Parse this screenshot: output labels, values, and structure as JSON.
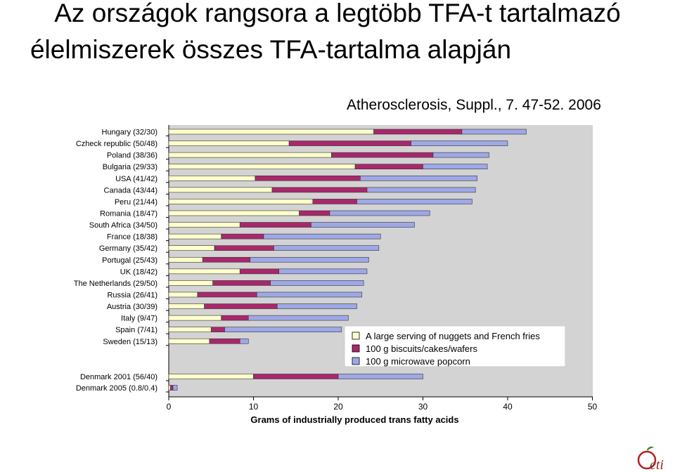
{
  "slide": {
    "title_line1": "Az országok rangsora a legtöbb TFA-t tartalmazó",
    "title_line2": "élelmiszerek összes TFA-tartalma alapján",
    "source": "Atherosclerosis, Suppl., 7. 47-52. 2006",
    "logo_text": "eti"
  },
  "colors": {
    "plot_bg": "#d3d3d3",
    "bar_border": "#333333"
  },
  "chart_data": {
    "type": "bar",
    "orientation": "horizontal",
    "stacked": true,
    "title": "",
    "xlabel": "Grams of industrially produced trans fatty acids",
    "ylabel": "",
    "xlim": [
      0,
      50
    ],
    "xticks": [
      0,
      10,
      20,
      30,
      40,
      50
    ],
    "legend_position": "bottom-right",
    "categories": [
      "Hungary (32/30)",
      "Czheck republic (50/48)",
      "Poland (38/36)",
      "Bulgaria (29/33)",
      "USA (41/42)",
      "Canada (43/44)",
      "Peru (21/44)",
      "Romania (18/47)",
      "South Africa (34/50)",
      "France (18/38)",
      "Germany (35/42)",
      "Portugal (25/43)",
      "UK (18/42)",
      "The Netherlands (29/50)",
      "Russia (26/41)",
      "Austria (30/39)",
      "Italy (9/47)",
      "Spain (7/41)",
      "Sweden (15/13)",
      "Denmark 2001 (56/40)",
      "Denmark 2005 (0.8/0.4)"
    ],
    "series": [
      {
        "name": "A large serving of nuggets and French fries",
        "color": "#ffffcc",
        "values": [
          24.2,
          14.2,
          19.2,
          22.0,
          10.2,
          12.2,
          17.0,
          15.4,
          8.4,
          6.2,
          5.4,
          4.0,
          8.4,
          5.2,
          3.4,
          4.2,
          6.2,
          5.0,
          4.8,
          10.0,
          0.2
        ]
      },
      {
        "name": "100 g biscuits/cakes/wafers",
        "color": "#a8286b",
        "values": [
          10.4,
          14.4,
          12.0,
          8.0,
          12.4,
          11.2,
          5.2,
          3.6,
          8.4,
          5.0,
          7.0,
          5.6,
          4.6,
          6.8,
          7.0,
          8.6,
          3.2,
          1.6,
          3.6,
          10.0,
          0.3
        ]
      },
      {
        "name": "100 g microwave popcorn",
        "color": "#9fa8e6",
        "values": [
          7.6,
          11.4,
          6.6,
          7.6,
          13.8,
          12.8,
          13.6,
          11.8,
          12.2,
          13.8,
          12.4,
          14.0,
          10.4,
          11.0,
          12.4,
          9.4,
          11.8,
          13.8,
          1.0,
          10.0,
          0.5
        ]
      }
    ]
  }
}
